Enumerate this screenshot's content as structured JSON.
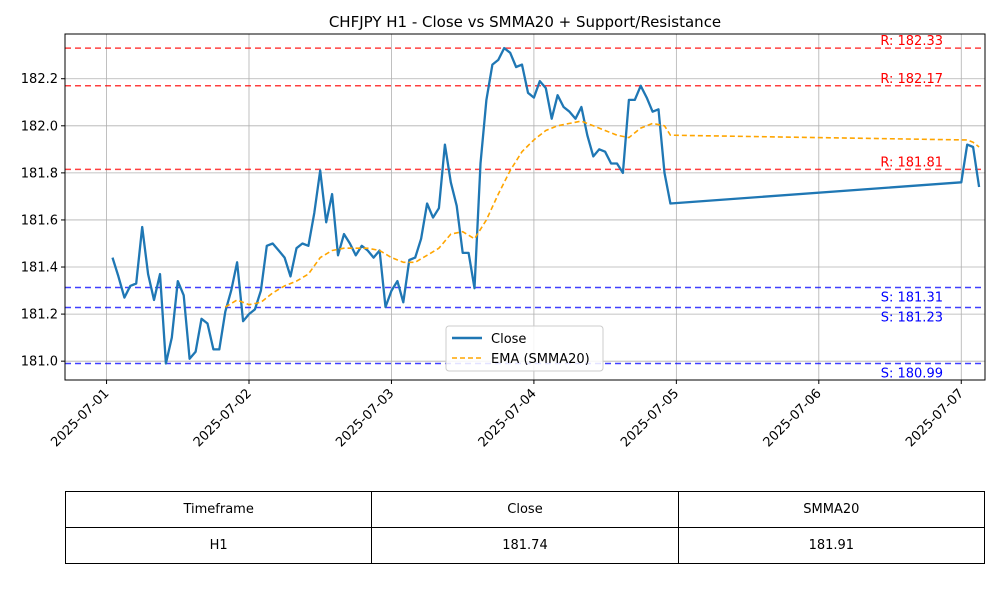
{
  "chart_data": {
    "type": "line",
    "title": "CHFJPY H1 - Close vs SMMA20 + Support/Resistance",
    "xlabel": "",
    "ylabel": "",
    "xlim": [
      "2025-06-30 17:00",
      "2025-07-07 04:00"
    ],
    "ylim": [
      180.92,
      182.39
    ],
    "grid": true,
    "legend_position": "bottom-center",
    "x_ticks": [
      "2025-07-01",
      "2025-07-02",
      "2025-07-03",
      "2025-07-04",
      "2025-07-05",
      "2025-07-06",
      "2025-07-07"
    ],
    "y_ticks": [
      "181.0",
      "181.2",
      "181.4",
      "181.6",
      "181.8",
      "182.0",
      "182.2"
    ],
    "series": [
      {
        "name": "Close",
        "color": "#1f77b4",
        "style": "solid",
        "points": [
          [
            "2025-07-01 01:00",
            181.44
          ],
          [
            "2025-07-01 02:00",
            181.36
          ],
          [
            "2025-07-01 03:00",
            181.27
          ],
          [
            "2025-07-01 04:00",
            181.32
          ],
          [
            "2025-07-01 05:00",
            181.33
          ],
          [
            "2025-07-01 06:00",
            181.57
          ],
          [
            "2025-07-01 07:00",
            181.37
          ],
          [
            "2025-07-01 08:00",
            181.26
          ],
          [
            "2025-07-01 09:00",
            181.37
          ],
          [
            "2025-07-01 10:00",
            180.99
          ],
          [
            "2025-07-01 11:00",
            181.1
          ],
          [
            "2025-07-01 12:00",
            181.34
          ],
          [
            "2025-07-01 13:00",
            181.28
          ],
          [
            "2025-07-01 14:00",
            181.01
          ],
          [
            "2025-07-01 15:00",
            181.04
          ],
          [
            "2025-07-01 16:00",
            181.18
          ],
          [
            "2025-07-01 17:00",
            181.16
          ],
          [
            "2025-07-01 18:00",
            181.05
          ],
          [
            "2025-07-01 19:00",
            181.05
          ],
          [
            "2025-07-01 20:00",
            181.21
          ],
          [
            "2025-07-01 21:00",
            181.3
          ],
          [
            "2025-07-01 22:00",
            181.42
          ],
          [
            "2025-07-01 23:00",
            181.17
          ],
          [
            "2025-07-02 00:00",
            181.2
          ],
          [
            "2025-07-02 01:00",
            181.22
          ],
          [
            "2025-07-02 02:00",
            181.3
          ],
          [
            "2025-07-02 03:00",
            181.49
          ],
          [
            "2025-07-02 04:00",
            181.5
          ],
          [
            "2025-07-02 05:00",
            181.47
          ],
          [
            "2025-07-02 06:00",
            181.44
          ],
          [
            "2025-07-02 07:00",
            181.36
          ],
          [
            "2025-07-02 08:00",
            181.48
          ],
          [
            "2025-07-02 09:00",
            181.5
          ],
          [
            "2025-07-02 10:00",
            181.49
          ],
          [
            "2025-07-02 11:00",
            181.63
          ],
          [
            "2025-07-02 12:00",
            181.81
          ],
          [
            "2025-07-02 13:00",
            181.59
          ],
          [
            "2025-07-02 14:00",
            181.71
          ],
          [
            "2025-07-02 15:00",
            181.45
          ],
          [
            "2025-07-02 16:00",
            181.54
          ],
          [
            "2025-07-02 17:00",
            181.5
          ],
          [
            "2025-07-02 18:00",
            181.45
          ],
          [
            "2025-07-02 19:00",
            181.49
          ],
          [
            "2025-07-02 20:00",
            181.47
          ],
          [
            "2025-07-02 21:00",
            181.44
          ],
          [
            "2025-07-02 22:00",
            181.47
          ],
          [
            "2025-07-02 23:00",
            181.23
          ],
          [
            "2025-07-03 00:00",
            181.3
          ],
          [
            "2025-07-03 01:00",
            181.34
          ],
          [
            "2025-07-03 02:00",
            181.25
          ],
          [
            "2025-07-03 03:00",
            181.43
          ],
          [
            "2025-07-03 04:00",
            181.44
          ],
          [
            "2025-07-03 05:00",
            181.52
          ],
          [
            "2025-07-03 06:00",
            181.67
          ],
          [
            "2025-07-03 07:00",
            181.61
          ],
          [
            "2025-07-03 08:00",
            181.65
          ],
          [
            "2025-07-03 09:00",
            181.92
          ],
          [
            "2025-07-03 10:00",
            181.76
          ],
          [
            "2025-07-03 11:00",
            181.66
          ],
          [
            "2025-07-03 12:00",
            181.46
          ],
          [
            "2025-07-03 13:00",
            181.46
          ],
          [
            "2025-07-03 14:00",
            181.31
          ],
          [
            "2025-07-03 15:00",
            181.84
          ],
          [
            "2025-07-03 16:00",
            182.11
          ],
          [
            "2025-07-03 17:00",
            182.26
          ],
          [
            "2025-07-03 18:00",
            182.28
          ],
          [
            "2025-07-03 19:00",
            182.33
          ],
          [
            "2025-07-03 20:00",
            182.31
          ],
          [
            "2025-07-03 21:00",
            182.25
          ],
          [
            "2025-07-03 22:00",
            182.26
          ],
          [
            "2025-07-03 23:00",
            182.14
          ],
          [
            "2025-07-04 00:00",
            182.12
          ],
          [
            "2025-07-04 01:00",
            182.19
          ],
          [
            "2025-07-04 02:00",
            182.16
          ],
          [
            "2025-07-04 03:00",
            182.03
          ],
          [
            "2025-07-04 04:00",
            182.13
          ],
          [
            "2025-07-04 05:00",
            182.08
          ],
          [
            "2025-07-04 06:00",
            182.06
          ],
          [
            "2025-07-04 07:00",
            182.03
          ],
          [
            "2025-07-04 08:00",
            182.08
          ],
          [
            "2025-07-04 09:00",
            181.96
          ],
          [
            "2025-07-04 10:00",
            181.87
          ],
          [
            "2025-07-04 11:00",
            181.9
          ],
          [
            "2025-07-04 12:00",
            181.89
          ],
          [
            "2025-07-04 13:00",
            181.84
          ],
          [
            "2025-07-04 14:00",
            181.84
          ],
          [
            "2025-07-04 15:00",
            181.8
          ],
          [
            "2025-07-04 16:00",
            182.11
          ],
          [
            "2025-07-04 17:00",
            182.11
          ],
          [
            "2025-07-04 18:00",
            182.17
          ],
          [
            "2025-07-04 19:00",
            182.12
          ],
          [
            "2025-07-04 20:00",
            182.06
          ],
          [
            "2025-07-04 21:00",
            182.07
          ],
          [
            "2025-07-04 22:00",
            181.8
          ],
          [
            "2025-07-04 23:00",
            181.67
          ],
          [
            "2025-07-07 00:00",
            181.76
          ],
          [
            "2025-07-07 01:00",
            181.92
          ],
          [
            "2025-07-07 02:00",
            181.91
          ],
          [
            "2025-07-07 03:00",
            181.74
          ]
        ]
      },
      {
        "name": "EMA (SMMA20)",
        "color": "#ffa500",
        "style": "dashed",
        "points": [
          [
            "2025-07-01 20:00",
            181.23
          ],
          [
            "2025-07-01 22:00",
            181.26
          ],
          [
            "2025-07-02 00:00",
            181.24
          ],
          [
            "2025-07-02 02:00",
            181.25
          ],
          [
            "2025-07-02 04:00",
            181.29
          ],
          [
            "2025-07-02 06:00",
            181.32
          ],
          [
            "2025-07-02 08:00",
            181.34
          ],
          [
            "2025-07-02 10:00",
            181.37
          ],
          [
            "2025-07-02 12:00",
            181.44
          ],
          [
            "2025-07-02 14:00",
            181.47
          ],
          [
            "2025-07-02 16:00",
            181.48
          ],
          [
            "2025-07-02 18:00",
            181.48
          ],
          [
            "2025-07-02 20:00",
            181.48
          ],
          [
            "2025-07-02 22:00",
            181.47
          ],
          [
            "2025-07-03 00:00",
            181.44
          ],
          [
            "2025-07-03 02:00",
            181.42
          ],
          [
            "2025-07-03 04:00",
            181.42
          ],
          [
            "2025-07-03 06:00",
            181.45
          ],
          [
            "2025-07-03 08:00",
            181.48
          ],
          [
            "2025-07-03 10:00",
            181.54
          ],
          [
            "2025-07-03 12:00",
            181.55
          ],
          [
            "2025-07-03 14:00",
            181.52
          ],
          [
            "2025-07-03 16:00",
            181.6
          ],
          [
            "2025-07-03 18:00",
            181.71
          ],
          [
            "2025-07-03 20:00",
            181.81
          ],
          [
            "2025-07-03 22:00",
            181.89
          ],
          [
            "2025-07-04 00:00",
            181.94
          ],
          [
            "2025-07-04 02:00",
            181.98
          ],
          [
            "2025-07-04 04:00",
            182.0
          ],
          [
            "2025-07-04 06:00",
            182.01
          ],
          [
            "2025-07-04 08:00",
            182.02
          ],
          [
            "2025-07-04 10:00",
            182.0
          ],
          [
            "2025-07-04 12:00",
            181.98
          ],
          [
            "2025-07-04 14:00",
            181.96
          ],
          [
            "2025-07-04 16:00",
            181.95
          ],
          [
            "2025-07-04 18:00",
            181.99
          ],
          [
            "2025-07-04 20:00",
            182.01
          ],
          [
            "2025-07-04 22:00",
            182.0
          ],
          [
            "2025-07-04 23:00",
            181.96
          ],
          [
            "2025-07-07 00:00",
            181.94
          ],
          [
            "2025-07-07 01:00",
            181.94
          ],
          [
            "2025-07-07 02:00",
            181.93
          ],
          [
            "2025-07-07 03:00",
            181.91
          ]
        ]
      }
    ],
    "resistance": [
      {
        "value": 182.33,
        "label": "R: 182.33"
      },
      {
        "value": 182.17,
        "label": "R: 182.17"
      },
      {
        "value": 181.815,
        "label": "R: 181.81"
      }
    ],
    "support": [
      {
        "value": 181.313,
        "label": "S: 181.31"
      },
      {
        "value": 181.228,
        "label": "S: 181.23"
      },
      {
        "value": 180.99,
        "label": "S: 180.99"
      }
    ],
    "resistance_color": "#ff0000",
    "support_color": "#0000ff"
  },
  "table": {
    "headers": [
      "Timeframe",
      "Close",
      "SMMA20"
    ],
    "rows": [
      [
        "H1",
        "181.74",
        "181.91"
      ]
    ]
  }
}
